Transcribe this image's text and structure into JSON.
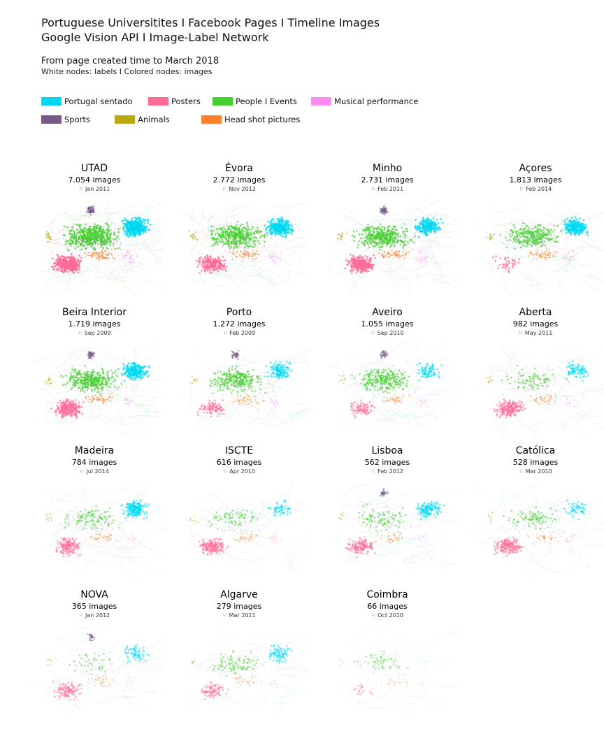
{
  "header": {
    "title_line1": "Portuguese Universitites I Facebook Pages I Timeline Images",
    "title_line2": "Google Vision API I Image-Label Network",
    "subtitle": "From page created time to March 2018",
    "note": "White nodes: labels I Colored nodes: images"
  },
  "legend": [
    {
      "label": "Portugal sentado",
      "color": "#00d8f2"
    },
    {
      "label": "Posters",
      "color": "#ff6b96"
    },
    {
      "label": "People I Events",
      "color": "#41d22a"
    },
    {
      "label": "Musical performance",
      "color": "#ff8af0"
    },
    {
      "label": "Sports",
      "color": "#77588a"
    },
    {
      "label": "Animals",
      "color": "#bba80e"
    },
    {
      "label": "Head shot pictures",
      "color": "#ff7f2a"
    }
  ],
  "panels": [
    {
      "name": "UTAD",
      "count": "7.054 images",
      "date": "Jan 2011",
      "density": 1.0,
      "cyan": 1.0,
      "green": 1.0,
      "pink": 1.0,
      "top": "sports"
    },
    {
      "name": "Évora",
      "count": "2.772 images",
      "date": "Nov 2012",
      "density": 0.8,
      "cyan": 1.0,
      "green": 1.0,
      "pink": 0.8,
      "top": "none"
    },
    {
      "name": "Minho",
      "count": "2.731 images",
      "date": "Feb 2011",
      "density": 0.8,
      "cyan": 0.7,
      "green": 1.0,
      "pink": 1.0,
      "top": "sports"
    },
    {
      "name": "Açores",
      "count": "1.813 images",
      "date": "Feb 2014",
      "density": 0.7,
      "cyan": 1.0,
      "green": 0.8,
      "pink": 0.15,
      "top": "none"
    },
    {
      "name": "Beira Interior",
      "count": "1.719 images",
      "date": "Sep 2009",
      "density": 0.7,
      "cyan": 0.9,
      "green": 1.0,
      "pink": 0.9,
      "top": "sports"
    },
    {
      "name": "Porto",
      "count": "1.272 images",
      "date": "Feb 2009",
      "density": 0.55,
      "cyan": 0.6,
      "green": 1.0,
      "pink": 0.4,
      "top": "sports"
    },
    {
      "name": "Aveiro",
      "count": "1.055 images",
      "date": "Sep 2010",
      "density": 0.5,
      "cyan": 0.4,
      "green": 1.0,
      "pink": 0.4,
      "top": "sports"
    },
    {
      "name": "Aberta",
      "count": "982 images",
      "date": "May 2011",
      "density": 0.5,
      "cyan": 0.4,
      "green": 0.3,
      "pink": 1.0,
      "top": "none"
    },
    {
      "name": "Madeira",
      "count": "784 images",
      "date": "Jul 2014",
      "density": 0.45,
      "cyan": 1.0,
      "green": 0.4,
      "pink": 0.8,
      "top": "none"
    },
    {
      "name": "ISCTE",
      "count": "616 images",
      "date": "Apr 2010",
      "density": 0.4,
      "cyan": 0.3,
      "green": 0.3,
      "pink": 1.0,
      "top": "none"
    },
    {
      "name": "Lisboa",
      "count": "562 images",
      "date": "Feb 2012",
      "density": 0.4,
      "cyan": 0.8,
      "green": 0.4,
      "pink": 0.8,
      "top": "sports"
    },
    {
      "name": "Católica",
      "count": "528 images",
      "date": "Mar 2010",
      "density": 0.4,
      "cyan": 0.3,
      "green": 0.4,
      "pink": 1.0,
      "top": "none"
    },
    {
      "name": "NOVA",
      "count": "365 images",
      "date": "Jan 2012",
      "density": 0.3,
      "cyan": 0.5,
      "green": 0.2,
      "pink": 0.8,
      "top": "sports"
    },
    {
      "name": "Algarve",
      "count": "279 images",
      "date": "Mar 2011",
      "density": 0.3,
      "cyan": 0.6,
      "green": 0.5,
      "pink": 0.6,
      "top": "none"
    },
    {
      "name": "Coimbra",
      "count": "66 images",
      "date": "Oct 2010",
      "density": 0.12,
      "cyan": 0.0,
      "green": 0.5,
      "pink": 0.2,
      "top": "none"
    }
  ]
}
